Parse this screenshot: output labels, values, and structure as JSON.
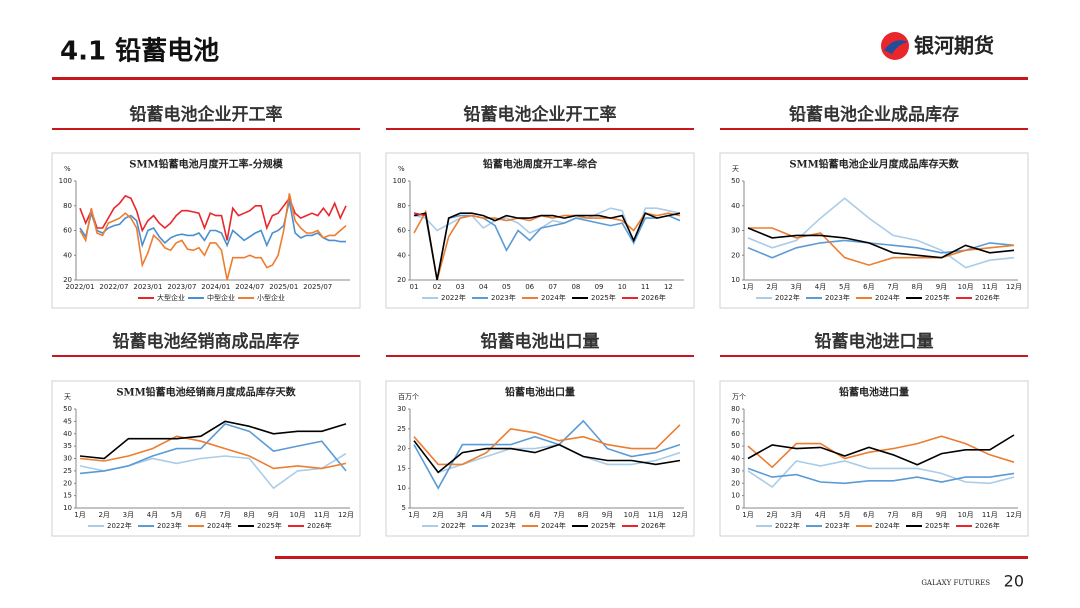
{
  "header": {
    "title": "4.1  铅蓄电池",
    "logo": "银河期货"
  },
  "panels": [
    {
      "heading": "铅蓄电池企业开工率"
    },
    {
      "heading": "铅蓄电池企业开工率"
    },
    {
      "heading": "铅蓄电池企业成品库存"
    },
    {
      "heading": "铅蓄电池经销商成品库存"
    },
    {
      "heading": "铅蓄电池出口量"
    },
    {
      "heading": "铅蓄电池进口量"
    }
  ],
  "chart_data": [
    {
      "type": "line",
      "title": "SMM铅蓄电池月度开工率-分规模",
      "y_label": "%",
      "categories": [
        "2022/01",
        null,
        null,
        null,
        null,
        null,
        "2022/07",
        null,
        null,
        null,
        null,
        null,
        "2023/01",
        null,
        null,
        null,
        null,
        null,
        "2023/07",
        null,
        null,
        null,
        null,
        null,
        "2024/01",
        null,
        null,
        null,
        null,
        null,
        "2024/07",
        null,
        null,
        null,
        null,
        null,
        "2025/01",
        null,
        null,
        null,
        null,
        null,
        "2025/07",
        null,
        null,
        null,
        null,
        null
      ],
      "ylim": [
        20,
        100
      ],
      "yticks": [
        20,
        40,
        60,
        80,
        100
      ],
      "grid": false,
      "series": [
        {
          "name": "大型企业",
          "color": "#e8262b",
          "values": [
            78,
            66,
            76,
            62,
            62,
            70,
            78,
            82,
            88,
            86,
            76,
            60,
            68,
            72,
            66,
            62,
            66,
            72,
            76,
            76,
            75,
            74,
            62,
            74,
            72,
            72,
            52,
            78,
            72,
            74,
            76,
            80,
            80,
            62,
            72,
            74,
            80,
            86,
            74,
            70,
            72,
            74,
            72,
            78,
            72,
            82,
            70,
            80
          ]
        },
        {
          "name": "中型企业",
          "color": "#4a8fd0",
          "values": [
            62,
            55,
            74,
            60,
            58,
            62,
            64,
            65,
            70,
            72,
            68,
            48,
            60,
            62,
            55,
            50,
            54,
            56,
            57,
            56,
            56,
            58,
            52,
            60,
            60,
            58,
            48,
            60,
            56,
            52,
            55,
            58,
            60,
            48,
            58,
            60,
            64,
            84,
            58,
            54,
            56,
            56,
            58,
            54,
            52,
            52,
            51,
            51
          ]
        },
        {
          "name": "小型企业",
          "color": "#ed7d31",
          "values": [
            60,
            52,
            78,
            58,
            56,
            66,
            68,
            70,
            74,
            70,
            62,
            32,
            42,
            56,
            52,
            46,
            44,
            50,
            52,
            45,
            44,
            46,
            40,
            50,
            50,
            44,
            20,
            38,
            38,
            38,
            40,
            38,
            38,
            30,
            32,
            40,
            60,
            90,
            68,
            62,
            58,
            58,
            60,
            54,
            56,
            56,
            60,
            64
          ]
        }
      ]
    },
    {
      "type": "line",
      "title": "铅蓄电池周度开工率-综合",
      "y_label": "%",
      "categories": [
        "01",
        null,
        "02",
        null,
        "03",
        null,
        "04",
        null,
        "05",
        null,
        "06",
        null,
        "07",
        null,
        "08",
        null,
        "09",
        null,
        "10",
        null,
        "11",
        null,
        "12",
        null
      ],
      "ylim": [
        20,
        100
      ],
      "yticks": [
        20,
        40,
        60,
        80,
        100
      ],
      "grid": false,
      "series": [
        {
          "name": "2022年",
          "color": "#a9cce8",
          "values": [
            72,
            70,
            60,
            65,
            70,
            72,
            62,
            68,
            70,
            66,
            58,
            62,
            68,
            66,
            70,
            70,
            74,
            78,
            76,
            50,
            78,
            78,
            76,
            74
          ]
        },
        {
          "name": "2023年",
          "color": "#5b9bd5",
          "values": [
            74,
            72,
            20,
            70,
            72,
            72,
            70,
            64,
            44,
            60,
            52,
            62,
            64,
            66,
            70,
            68,
            66,
            64,
            66,
            50,
            70,
            70,
            72,
            68
          ]
        },
        {
          "name": "2024年",
          "color": "#ed7d31",
          "values": [
            58,
            75,
            20,
            55,
            70,
            72,
            70,
            70,
            68,
            70,
            68,
            72,
            70,
            72,
            72,
            70,
            70,
            70,
            68,
            60,
            74,
            72,
            74,
            72
          ]
        },
        {
          "name": "2025年",
          "color": "#000000",
          "values": [
            72,
            74,
            20,
            70,
            74,
            74,
            72,
            68,
            72,
            70,
            70,
            72,
            72,
            70,
            72,
            72,
            72,
            70,
            72,
            52,
            74,
            70,
            72,
            74
          ]
        },
        {
          "name": "2026年",
          "color": "#e8262b",
          "values": [
            74,
            72,
            null,
            null,
            null,
            null,
            null,
            null,
            null,
            null,
            null,
            null,
            null,
            null,
            null,
            null,
            null,
            null,
            null,
            null,
            null,
            null,
            null,
            null
          ]
        }
      ]
    },
    {
      "type": "line",
      "title": "SMM铅蓄电池企业月度成品库存天数",
      "y_label": "天",
      "categories": [
        "1月",
        "2月",
        "3月",
        "4月",
        "5月",
        "6月",
        "7月",
        "8月",
        "9月",
        "10月",
        "11月",
        "12月"
      ],
      "ylim": [
        10,
        50
      ],
      "yticks": [
        10,
        20,
        30,
        40,
        50
      ],
      "grid": false,
      "series": [
        {
          "name": "2022年",
          "color": "#a9cce8",
          "values": [
            27,
            23,
            26,
            35,
            43,
            35,
            28,
            26,
            22,
            15,
            18,
            19
          ]
        },
        {
          "name": "2023年",
          "color": "#5b9bd5",
          "values": [
            23,
            19,
            23,
            25,
            26,
            25,
            24,
            23,
            21,
            22,
            25,
            24
          ]
        },
        {
          "name": "2024年",
          "color": "#ed7d31",
          "values": [
            31,
            31,
            27,
            29,
            19,
            16,
            19,
            19,
            19,
            22,
            23,
            24
          ]
        },
        {
          "name": "2025年",
          "color": "#000000",
          "values": [
            31,
            27,
            28,
            28,
            27,
            25,
            21,
            20,
            19,
            24,
            21,
            22
          ]
        },
        {
          "name": "2026年",
          "color": "#e8262b",
          "values": [
            30,
            null,
            null,
            null,
            null,
            null,
            null,
            null,
            null,
            null,
            null,
            null
          ]
        }
      ]
    },
    {
      "type": "line",
      "title": "SMM铅蓄电池经销商月度成品库存天数",
      "y_label": "天",
      "categories": [
        "1月",
        "2月",
        "3月",
        "4月",
        "5月",
        "6月",
        "7月",
        "8月",
        "9月",
        "10月",
        "11月",
        "12月"
      ],
      "ylim": [
        10,
        50
      ],
      "yticks": [
        10,
        15,
        20,
        25,
        30,
        35,
        40,
        45,
        50
      ],
      "grid": false,
      "series": [
        {
          "name": "2022年",
          "color": "#a9cce8",
          "values": [
            27,
            25,
            27,
            30,
            28,
            30,
            31,
            30,
            18,
            25,
            26,
            32
          ]
        },
        {
          "name": "2023年",
          "color": "#5b9bd5",
          "values": [
            24,
            25,
            27,
            31,
            34,
            34,
            44,
            41,
            33,
            35,
            37,
            25
          ]
        },
        {
          "name": "2024年",
          "color": "#ed7d31",
          "values": [
            30,
            29,
            31,
            34,
            39,
            37,
            34,
            31,
            26,
            27,
            26,
            28
          ]
        },
        {
          "name": "2025年",
          "color": "#000000",
          "values": [
            31,
            30,
            38,
            38,
            38,
            39,
            45,
            43,
            40,
            41,
            41,
            44
          ]
        },
        {
          "name": "2026年",
          "color": "#e8262b",
          "values": [
            31,
            null,
            null,
            null,
            null,
            null,
            null,
            null,
            null,
            null,
            null,
            null
          ]
        }
      ]
    },
    {
      "type": "line",
      "title": "铅蓄电池出口量",
      "y_label": "百万个",
      "categories": [
        "1月",
        "2月",
        "3月",
        "4月",
        "5月",
        "6月",
        "7月",
        "8月",
        "9月",
        "10月",
        "11月",
        "12月"
      ],
      "ylim": [
        5,
        30
      ],
      "yticks": [
        5,
        10,
        15,
        20,
        25,
        30
      ],
      "grid": false,
      "series": [
        {
          "name": "2022年",
          "color": "#a9cce8",
          "values": [
            22,
            14,
            16,
            18,
            20,
            20,
            21,
            18,
            16,
            16,
            17,
            19
          ]
        },
        {
          "name": "2023年",
          "color": "#5b9bd5",
          "values": [
            21,
            10,
            21,
            21,
            21,
            23,
            21,
            27,
            20,
            18,
            19,
            21
          ]
        },
        {
          "name": "2024年",
          "color": "#ed7d31",
          "values": [
            23,
            16,
            16,
            19,
            25,
            24,
            22,
            23,
            21,
            20,
            20,
            26
          ]
        },
        {
          "name": "2025年",
          "color": "#000000",
          "values": [
            22,
            14,
            19,
            20,
            20,
            19,
            21,
            18,
            17,
            17,
            16,
            17
          ]
        },
        {
          "name": "2026年",
          "color": "#e8262b",
          "values": [
            null,
            null,
            null,
            null,
            null,
            null,
            null,
            null,
            null,
            null,
            null,
            null
          ]
        }
      ]
    },
    {
      "type": "line",
      "title": "铅蓄电池进口量",
      "y_label": "万个",
      "categories": [
        "1月",
        "2月",
        "3月",
        "4月",
        "5月",
        "6月",
        "7月",
        "8月",
        "9月",
        "10月",
        "11月",
        "12月"
      ],
      "ylim": [
        0,
        80
      ],
      "yticks": [
        0,
        10,
        20,
        30,
        40,
        50,
        60,
        70,
        80
      ],
      "grid": false,
      "series": [
        {
          "name": "2022年",
          "color": "#a9cce8",
          "values": [
            30,
            17,
            38,
            34,
            38,
            32,
            32,
            32,
            28,
            21,
            20,
            25
          ]
        },
        {
          "name": "2023年",
          "color": "#5b9bd5",
          "values": [
            32,
            25,
            27,
            21,
            20,
            22,
            22,
            25,
            21,
            25,
            25,
            28
          ]
        },
        {
          "name": "2024年",
          "color": "#ed7d31",
          "values": [
            50,
            33,
            52,
            52,
            40,
            45,
            48,
            52,
            58,
            52,
            43,
            37
          ]
        },
        {
          "name": "2025年",
          "color": "#000000",
          "values": [
            40,
            51,
            48,
            49,
            42,
            49,
            43,
            35,
            44,
            47,
            47,
            59
          ]
        },
        {
          "name": "2026年",
          "color": "#e8262b",
          "values": [
            null,
            null,
            null,
            null,
            null,
            null,
            null,
            null,
            null,
            null,
            null,
            null
          ]
        }
      ]
    }
  ],
  "footer": {
    "brand": "GALAXY FUTURES",
    "page": "20"
  }
}
